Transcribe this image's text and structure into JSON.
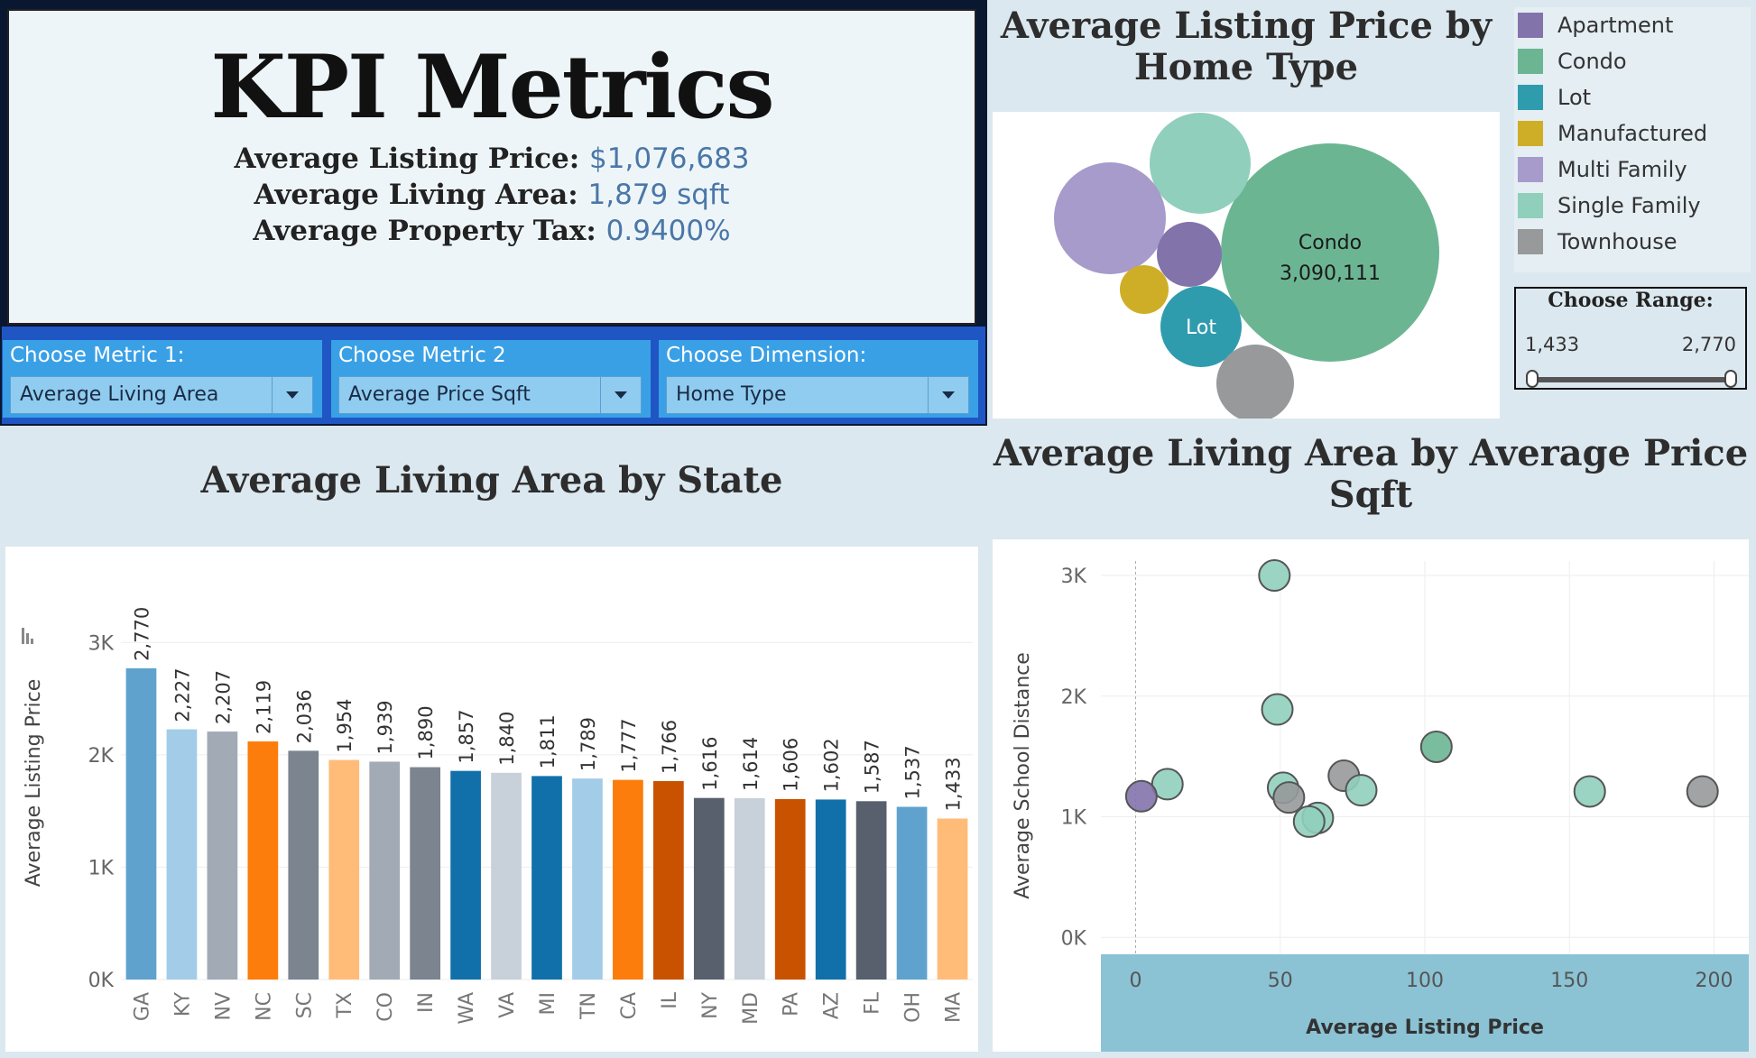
{
  "kpi": {
    "title": "KPI Metrics",
    "rows": [
      {
        "label": "Average Listing Price:",
        "value": "$1,076,683"
      },
      {
        "label": "Average Living Area:",
        "value": "1,879 sqft"
      },
      {
        "label": "Average Property Tax:",
        "value": "0.9400%"
      }
    ]
  },
  "controls": [
    {
      "label": "Choose Metric 1:",
      "value": "Average Living Area"
    },
    {
      "label": "Choose Metric 2",
      "value": "Average Price Sqft"
    },
    {
      "label": "Choose Dimension:",
      "value": "Home Type"
    }
  ],
  "legend": [
    {
      "label": "Apartment",
      "color": "#8373ab"
    },
    {
      "label": "Condo",
      "color": "#6cb593"
    },
    {
      "label": "Lot",
      "color": "#2f9cae"
    },
    {
      "label": "Manufactured",
      "color": "#cfae27"
    },
    {
      "label": "Multi Family",
      "color": "#a69bcb"
    },
    {
      "label": "Single Family",
      "color": "#90cfbb"
    },
    {
      "label": "Townhouse",
      "color": "#97999a"
    }
  ],
  "range_filter": {
    "title": "Choose Range:",
    "min": "1,433",
    "max": "2,770",
    "low": 0,
    "high": 1
  },
  "chart_data": [
    {
      "type": "bubble",
      "title": "Average Listing Price by Home Type",
      "bubbles": [
        {
          "category": "Condo",
          "value": 3090111,
          "value_label": "3,090,111",
          "color": "#6cb593",
          "show_label": true
        },
        {
          "category": "Single Family",
          "color": "#90cfbb"
        },
        {
          "category": "Multi Family",
          "color": "#a69bcb"
        },
        {
          "category": "Apartment",
          "color": "#8373ab"
        },
        {
          "category": "Manufactured",
          "color": "#cfae27"
        },
        {
          "category": "Lot",
          "color": "#2f9cae",
          "show_label": true
        },
        {
          "category": "Townhouse",
          "color": "#97999a"
        }
      ]
    },
    {
      "type": "bar",
      "title": "Average Living Area by State",
      "ylabel": "Average Listing Price",
      "ylim": [
        0,
        3500
      ],
      "yticks": [
        {
          "v": 0,
          "label": "0K"
        },
        {
          "v": 1000,
          "label": "1K"
        },
        {
          "v": 2000,
          "label": "2K"
        },
        {
          "v": 3000,
          "label": "3K"
        }
      ],
      "categories": [
        "GA",
        "KY",
        "NV",
        "NC",
        "SC",
        "TX",
        "CO",
        "IN",
        "WA",
        "VA",
        "MI",
        "TN",
        "CA",
        "IL",
        "NY",
        "MD",
        "PA",
        "AZ",
        "FL",
        "OH",
        "MA"
      ],
      "values": [
        2770,
        2227,
        2207,
        2119,
        2036,
        1954,
        1939,
        1890,
        1857,
        1840,
        1811,
        1789,
        1777,
        1766,
        1616,
        1614,
        1606,
        1602,
        1587,
        1537,
        1433
      ],
      "value_labels": [
        "2,770",
        "2,227",
        "2,207",
        "2,119",
        "2,036",
        "1,954",
        "1,939",
        "1,890",
        "1,857",
        "1,840",
        "1,811",
        "1,789",
        "1,777",
        "1,766",
        "1,616",
        "1,614",
        "1,606",
        "1,602",
        "1,587",
        "1,537",
        "1,433"
      ],
      "colors": [
        "#5fa2ce",
        "#a3cce9",
        "#a2aab5",
        "#fc7d0b",
        "#7b848f",
        "#ffbc79",
        "#a2aab5",
        "#7b848f",
        "#1170aa",
        "#c8d0d9",
        "#1170aa",
        "#a3cce9",
        "#fc7d0b",
        "#c85200",
        "#57606c",
        "#c8d0d9",
        "#c85200",
        "#1170aa",
        "#57606c",
        "#5fa2ce",
        "#ffbc79"
      ],
      "grid": true
    },
    {
      "type": "scatter",
      "title": "Average Living Area by Average Price Sqft",
      "xlabel": "Average Listing Price",
      "ylabel": "Average School Distance",
      "xlim": [
        -12,
        212
      ],
      "ylim": [
        -140,
        3120
      ],
      "xticks": [
        {
          "v": 0,
          "label": "0"
        },
        {
          "v": 50,
          "label": "50"
        },
        {
          "v": 100,
          "label": "100"
        },
        {
          "v": 150,
          "label": "150"
        },
        {
          "v": 200,
          "label": "200"
        }
      ],
      "yticks": [
        {
          "v": 0,
          "label": "0K"
        },
        {
          "v": 1000,
          "label": "1K"
        },
        {
          "v": 2000,
          "label": "2K"
        },
        {
          "v": 3000,
          "label": "3K"
        }
      ],
      "points": [
        {
          "x": 48,
          "y": 3000,
          "color": "#90cfbb"
        },
        {
          "x": 49,
          "y": 1890,
          "color": "#90cfbb"
        },
        {
          "x": 104,
          "y": 1580,
          "color": "#6cb593"
        },
        {
          "x": 72,
          "y": 1340,
          "color": "#97999a"
        },
        {
          "x": 11,
          "y": 1270,
          "color": "#90cfbb"
        },
        {
          "x": 2,
          "y": 1170,
          "color": "#8373ab"
        },
        {
          "x": 51,
          "y": 1240,
          "color": "#90cfbb"
        },
        {
          "x": 53,
          "y": 1160,
          "color": "#97999a"
        },
        {
          "x": 78,
          "y": 1220,
          "color": "#90cfbb"
        },
        {
          "x": 63,
          "y": 990,
          "color": "#90cfbb"
        },
        {
          "x": 60,
          "y": 960,
          "color": "#90cfbb"
        },
        {
          "x": 157,
          "y": 1210,
          "color": "#90cfbb"
        },
        {
          "x": 196,
          "y": 1210,
          "color": "#97999a"
        }
      ],
      "grid": true
    }
  ]
}
